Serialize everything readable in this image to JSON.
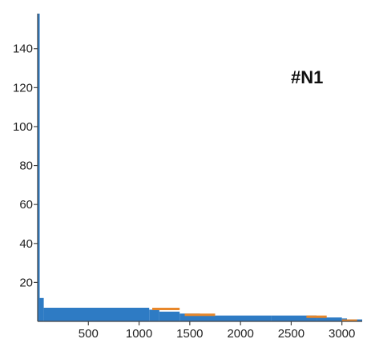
{
  "chart_data": {
    "type": "bar",
    "title": "",
    "xlabel": "",
    "ylabel": "",
    "panel_label": "#N1",
    "xlim": [
      0,
      3200
    ],
    "ylim": [
      0,
      158
    ],
    "xticks": [
      500,
      1000,
      1500,
      2000,
      2500,
      3000
    ],
    "yticks": [
      20,
      40,
      60,
      80,
      100,
      120,
      140
    ],
    "grid": false,
    "legend": "none",
    "colors": {
      "series_main": "#2e7bc4",
      "series_secondary": "#e8872a",
      "axis": "#444444"
    },
    "series": [
      {
        "values_description": "rank-ordered distribution",
        "segments": [
          {
            "x_start": 0,
            "x_end": 20,
            "value": 158
          },
          {
            "x_start": 20,
            "x_end": 60,
            "value": 12
          },
          {
            "x_start": 60,
            "x_end": 1100,
            "value": 7
          },
          {
            "x_start": 1100,
            "x_end": 1200,
            "value": 6
          },
          {
            "x_start": 1200,
            "x_end": 1400,
            "value": 5
          },
          {
            "x_start": 1400,
            "x_end": 1600,
            "value": 4
          },
          {
            "x_start": 1600,
            "x_end": 2300,
            "value": 3
          },
          {
            "x_start": 2300,
            "x_end": 2750,
            "value": 3
          },
          {
            "x_start": 2750,
            "x_end": 3000,
            "value": 2
          },
          {
            "x_start": 3000,
            "x_end": 3050,
            "value": 1.5
          },
          {
            "x_start": 3050,
            "x_end": 3200,
            "value": 1
          }
        ]
      },
      {
        "segments": [
          {
            "x_start": 1130,
            "x_end": 1400,
            "value": 7
          },
          {
            "x_start": 1450,
            "x_end": 1750,
            "value": 4
          },
          {
            "x_start": 2650,
            "x_end": 2850,
            "value": 3
          },
          {
            "x_start": 3000,
            "x_end": 3150,
            "value": 1
          }
        ]
      }
    ]
  }
}
